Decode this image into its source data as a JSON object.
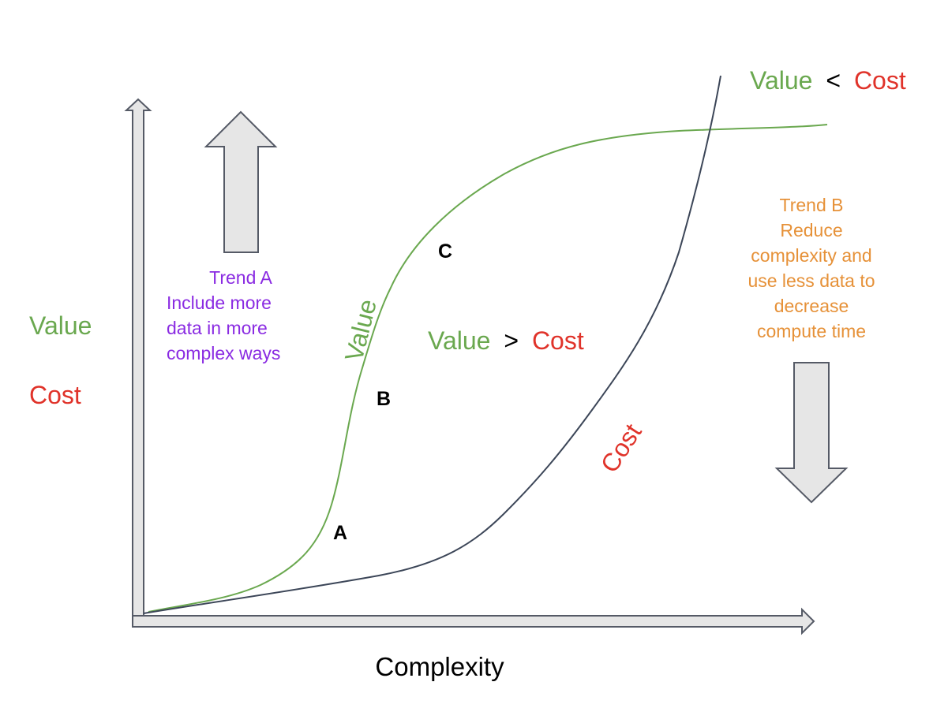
{
  "colors": {
    "value": "#6aa84f",
    "cost": "#e0332a",
    "trend_a": "#8a2be2",
    "trend_b": "#e69138",
    "curve_cost": "#3c4658",
    "arrow_fill": "#e6e6e6",
    "arrow_stroke": "#555a66",
    "text": "#000000"
  },
  "axes": {
    "x_label": "Complexity",
    "y_label_value": "Value",
    "y_label_cost": "Cost"
  },
  "labels": {
    "curve_value": "Value",
    "curve_cost": "Cost",
    "point_a": "A",
    "point_b": "B",
    "point_c": "C",
    "mid_value": "Value",
    "mid_op": ">",
    "mid_cost": "Cost",
    "top_value": "Value",
    "top_op": "<",
    "top_cost": "Cost"
  },
  "trend_a": {
    "lines": [
      "Trend A",
      "Include more",
      "data in more",
      "complex ways"
    ],
    "arrow": "up-arrow"
  },
  "trend_b": {
    "lines": [
      "Trend B",
      "Reduce",
      "complexity and",
      "use less data to",
      "decrease",
      "compute time"
    ],
    "arrow": "down-arrow"
  }
}
